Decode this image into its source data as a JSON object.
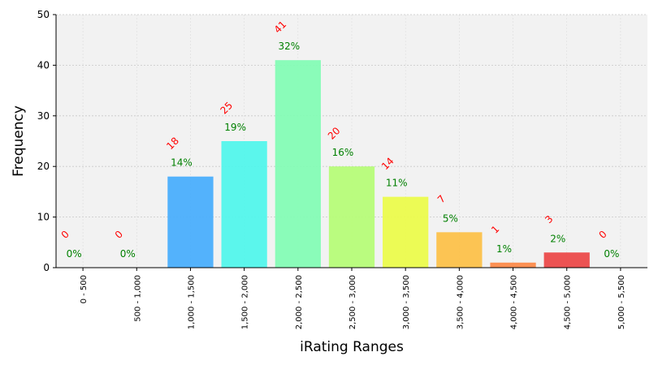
{
  "chart_data": {
    "type": "bar",
    "title": "",
    "xlabel": "iRating Ranges",
    "ylabel": "Frequency",
    "ylim": [
      0,
      50
    ],
    "yticks": [
      0,
      10,
      20,
      30,
      40,
      50
    ],
    "grid": true,
    "categories": [
      "0 - 500",
      "500 - 1,000",
      "1,000 - 1,500",
      "1,500 - 2,000",
      "2,000 - 2,500",
      "2,500 - 3,000",
      "3,000 - 3,500",
      "3,500 - 4,000",
      "4,000 - 4,500",
      "4,500 - 5,000",
      "5,000 - 5,500"
    ],
    "values": [
      0,
      0,
      18,
      25,
      41,
      20,
      14,
      7,
      1,
      3,
      0
    ],
    "percent_labels": [
      "0%",
      "0%",
      "14%",
      "19%",
      "32%",
      "16%",
      "11%",
      "5%",
      "1%",
      "2%",
      "0%"
    ],
    "count_labels": [
      "0",
      "0",
      "18",
      "25",
      "41",
      "20",
      "14",
      "7",
      "1",
      "3",
      "0"
    ],
    "colors": [
      "#4a7bff",
      "#4a7bff",
      "#4aaefc",
      "#52f5eb",
      "#84fcb5",
      "#b6fc78",
      "#ebfb4c",
      "#fcc14a",
      "#fc8a4a",
      "#eb4a4a",
      "#d43030"
    ],
    "count_label_color": "#ff0000",
    "percent_label_color": "#008000",
    "plot_background": "#f2f2f2"
  }
}
